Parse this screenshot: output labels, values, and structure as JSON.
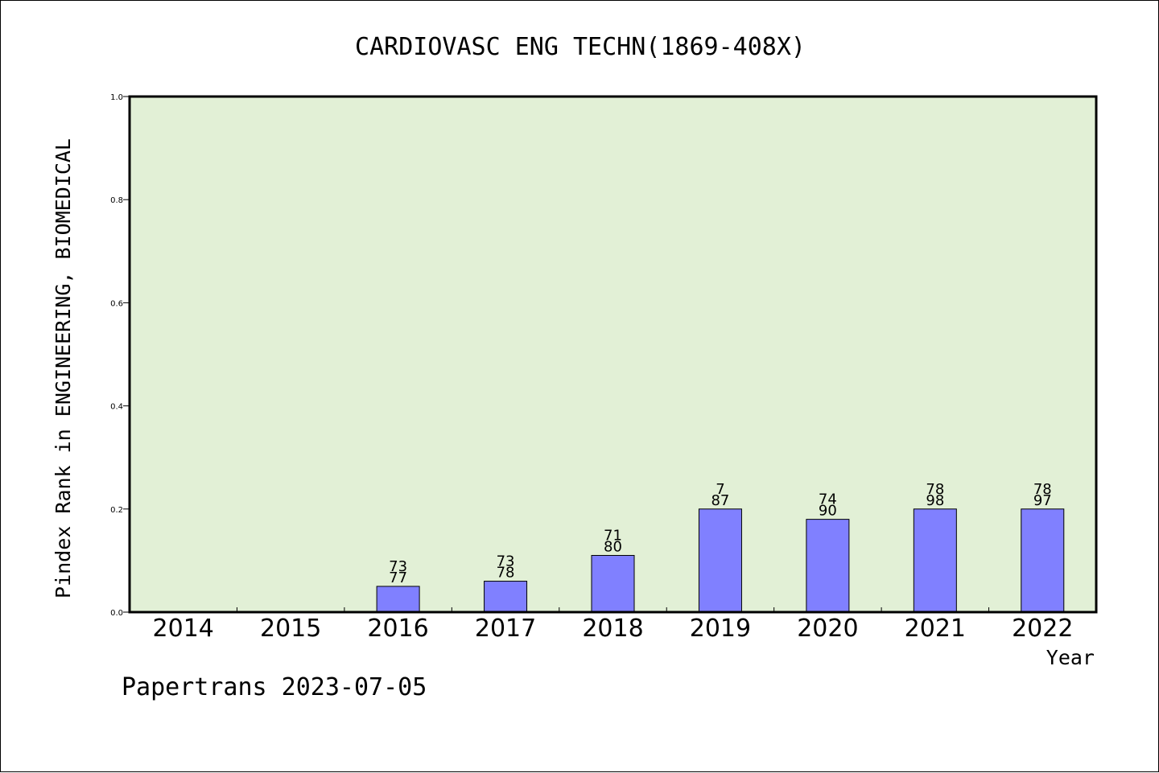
{
  "chart_data": {
    "type": "bar",
    "title": "CARDIOVASC ENG TECHN(1869-408X)",
    "xlabel": "Year",
    "ylabel": "Pindex Rank in ENGINEERING, BIOMEDICAL",
    "ylim": [
      0,
      1.0
    ],
    "yticks": [
      "0.0",
      "0.2",
      "0.4",
      "0.6",
      "0.8",
      "1.0"
    ],
    "categories": [
      "2014",
      "2015",
      "2016",
      "2017",
      "2018",
      "2019",
      "2020",
      "2021",
      "2022"
    ],
    "values": [
      null,
      null,
      0.05,
      0.06,
      0.11,
      0.2,
      0.18,
      0.2,
      0.2
    ],
    "bar_labels_top": [
      "",
      "",
      "73",
      "73",
      "71",
      "7",
      "74",
      "78",
      "78"
    ],
    "bar_labels_bottom": [
      "",
      "",
      "77",
      "78",
      "80",
      "87",
      "90",
      "98",
      "97"
    ],
    "grid": false,
    "legend": "none",
    "colors": {
      "plot_background": "#e2f0d6",
      "bar_fill": "#8080ff",
      "bar_edge": "#000000"
    }
  },
  "footer": "Papertrans 2023-07-05"
}
